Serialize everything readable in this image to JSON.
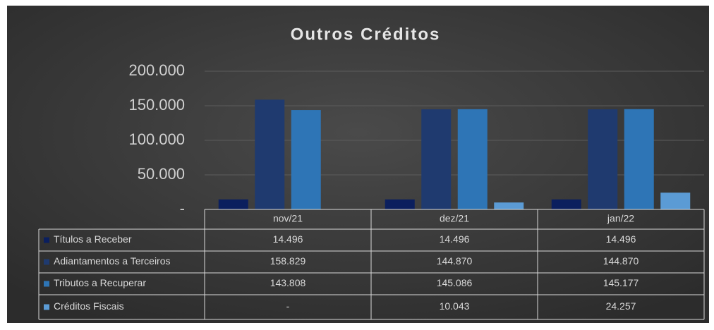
{
  "chart_data": {
    "type": "bar",
    "title": "Outros Créditos",
    "categories": [
      "nov/21",
      "dez/21",
      "jan/22"
    ],
    "series": [
      {
        "name": "Títulos a Receber",
        "color": "#0b1f5e",
        "values": [
          14496,
          14496,
          14496
        ],
        "value_labels": [
          "14.496",
          "14.496",
          "14.496"
        ]
      },
      {
        "name": "Adiantamentos a Terceiros",
        "color": "#1f3a6f",
        "values": [
          158829,
          144870,
          144870
        ],
        "value_labels": [
          "158.829",
          "144.870",
          "144.870"
        ]
      },
      {
        "name": "Tributos a Recuperar",
        "color": "#2e75b6",
        "values": [
          143808,
          145086,
          145177
        ],
        "value_labels": [
          "143.808",
          "145.086",
          "145.177"
        ]
      },
      {
        "name": "Créditos Fiscais",
        "color": "#5b9bd5",
        "values": [
          0,
          10043,
          24257
        ],
        "value_labels": [
          "-",
          "10.043",
          "24.257"
        ]
      }
    ],
    "ylim": [
      0,
      200000
    ],
    "yticks": [
      {
        "value": 0,
        "label": "-"
      },
      {
        "value": 50000,
        "label": "50.000"
      },
      {
        "value": 100000,
        "label": "100.000"
      },
      {
        "value": 150000,
        "label": "150.000"
      },
      {
        "value": 200000,
        "label": "200.000"
      }
    ],
    "grid": true
  }
}
